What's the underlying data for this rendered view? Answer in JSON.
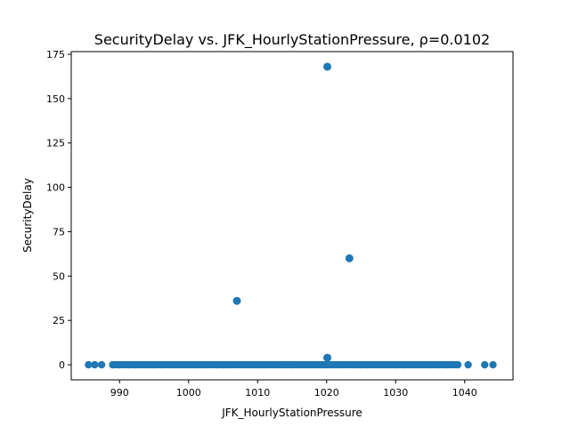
{
  "chart_data": {
    "type": "scatter",
    "title": "SecurityDelay vs. JFK_HourlyStationPressure, ρ=0.0102",
    "xlabel": "JFK_HourlyStationPressure",
    "ylabel": "SecurityDelay",
    "xlim": [
      983.0,
      1047.0
    ],
    "ylim": [
      -8.5,
      176.5
    ],
    "xticks": [
      990,
      1000,
      1010,
      1020,
      1030,
      1040
    ],
    "yticks": [
      0,
      25,
      50,
      75,
      100,
      125,
      150,
      175
    ],
    "grid": false,
    "legend": "none",
    "marker_color": "#1f77b4",
    "outliers": [
      {
        "x": 1020.1,
        "y": 168
      },
      {
        "x": 1023.3,
        "y": 60
      },
      {
        "x": 1007.0,
        "y": 36
      },
      {
        "x": 1020.1,
        "y": 4
      }
    ],
    "baseline": {
      "y": 0,
      "x": [
        985.5,
        986.4,
        987.4,
        989.0,
        990.0,
        991.3,
        992.4,
        993.8,
        994.8,
        996.0,
        997.5,
        998.6,
        1000.0,
        1001.0,
        1002.5,
        1004.0,
        1005.0,
        1006.0,
        1007.5,
        1009.0,
        1010.0,
        1011.0,
        1012.5,
        1014.0,
        1015.0,
        1016.0,
        1017.5,
        1019.0,
        1020.0,
        1021.0,
        1022.5,
        1024.0,
        1025.0,
        1026.0,
        1027.5,
        1029.0,
        1030.0,
        1031.2,
        1032.5,
        1033.8,
        1035.0,
        1036.2,
        1037.5,
        1039.0,
        1040.5,
        1042.9,
        1044.1
      ]
    }
  }
}
